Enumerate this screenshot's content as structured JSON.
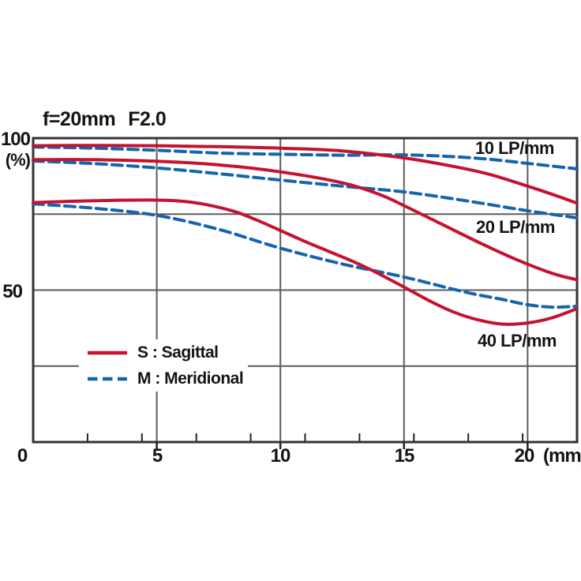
{
  "title": {
    "focal": "f=20mm",
    "aperture": "F2.0"
  },
  "colors": {
    "sagittal": "#c5132f",
    "meridional": "#1565ad",
    "grid": "#5c5c5c",
    "border": "#333333",
    "tick": "#222222",
    "text": "#141414",
    "background": "#ffffff"
  },
  "y_axis": {
    "label_100": "100",
    "unit": "(%)",
    "label_50": "50"
  },
  "x_axis": {
    "tick_labels": [
      "0",
      "5",
      "10",
      "15",
      "20"
    ],
    "unit": "(mm)"
  },
  "curve_labels": [
    "10 LP/mm",
    "20 LP/mm",
    "40 LP/mm"
  ],
  "legend": {
    "sagittal_label": "S : Sagittal",
    "meridional_label": "M : Meridional"
  },
  "chart_data": {
    "type": "line",
    "title": "f=20mm F2.0",
    "xlabel": "(mm)",
    "ylabel": "(%)",
    "xlim": [
      0,
      22
    ],
    "ylim": [
      0,
      100
    ],
    "x_major_ticks": [
      0,
      5,
      10,
      15,
      20
    ],
    "x_minor_ticks": [
      2.2,
      4.4,
      6.6,
      8.8,
      11,
      13.2,
      15.4,
      17.6,
      19.8
    ],
    "y_gridlines": [
      25,
      50,
      75,
      100
    ],
    "y_labeled_ticks": [
      50,
      100
    ],
    "grid": true,
    "legend_position": "inside-lower-left",
    "annotations": [
      "10 LP/mm",
      "20 LP/mm",
      "40 LP/mm"
    ],
    "series": [
      {
        "name": "10 LP/mm Sagittal",
        "group": "10 LP/mm",
        "orientation": "S",
        "style": "solid",
        "color_key": "sagittal",
        "points": [
          [
            0,
            97.5
          ],
          [
            2.5,
            97.6
          ],
          [
            5,
            97.5
          ],
          [
            7.5,
            97.2
          ],
          [
            10,
            96.7
          ],
          [
            12.5,
            95.8
          ],
          [
            15,
            93.5
          ],
          [
            17,
            90.7
          ],
          [
            18.5,
            88.0
          ],
          [
            20,
            84.2
          ],
          [
            21,
            81.5
          ],
          [
            22,
            78.6
          ]
        ]
      },
      {
        "name": "10 LP/mm Meridional",
        "group": "10 LP/mm",
        "orientation": "M",
        "style": "dashed",
        "color_key": "meridional",
        "points": [
          [
            0,
            97.1
          ],
          [
            2.5,
            96.7
          ],
          [
            5,
            96.0
          ],
          [
            7.5,
            95.1
          ],
          [
            10,
            94.7
          ],
          [
            12.5,
            94.4
          ],
          [
            15,
            94.5
          ],
          [
            17,
            93.9
          ],
          [
            18.5,
            93.0
          ],
          [
            20,
            91.7
          ],
          [
            21,
            90.8
          ],
          [
            22,
            89.9
          ]
        ]
      },
      {
        "name": "20 LP/mm Sagittal",
        "group": "20 LP/mm",
        "orientation": "S",
        "style": "solid",
        "color_key": "sagittal",
        "points": [
          [
            0,
            92.9
          ],
          [
            2.5,
            92.9
          ],
          [
            5,
            92.4
          ],
          [
            7.5,
            91.2
          ],
          [
            10,
            88.9
          ],
          [
            12.5,
            85.3
          ],
          [
            14,
            81.5
          ],
          [
            15,
            77.8
          ],
          [
            16.5,
            71.8
          ],
          [
            18,
            65.8
          ],
          [
            19.5,
            60.2
          ],
          [
            21,
            55.5
          ],
          [
            22,
            53.4
          ]
        ]
      },
      {
        "name": "20 LP/mm Meridional",
        "group": "20 LP/mm",
        "orientation": "M",
        "style": "dashed",
        "color_key": "meridional",
        "points": [
          [
            0,
            92.5
          ],
          [
            2.5,
            91.6
          ],
          [
            5,
            90.2
          ],
          [
            7.5,
            88.3
          ],
          [
            10,
            86.2
          ],
          [
            12.5,
            84.2
          ],
          [
            15,
            82.3
          ],
          [
            17.5,
            79.4
          ],
          [
            20,
            76.1
          ],
          [
            22,
            73.8
          ]
        ]
      },
      {
        "name": "40 LP/mm Sagittal",
        "group": "40 LP/mm",
        "orientation": "S",
        "style": "solid",
        "color_key": "sagittal",
        "points": [
          [
            0,
            78.8
          ],
          [
            2.5,
            79.4
          ],
          [
            5,
            79.6
          ],
          [
            6.5,
            78.8
          ],
          [
            8,
            76.2
          ],
          [
            9,
            73.2
          ],
          [
            10,
            69.6
          ],
          [
            11,
            66.0
          ],
          [
            12,
            62.6
          ],
          [
            13,
            59.2
          ],
          [
            14,
            55.3
          ],
          [
            15,
            51.0
          ],
          [
            16,
            46.6
          ],
          [
            17,
            42.8
          ],
          [
            18,
            40.2
          ],
          [
            19,
            38.8
          ],
          [
            20,
            39.2
          ],
          [
            21,
            40.9
          ],
          [
            22,
            43.9
          ]
        ]
      },
      {
        "name": "40 LP/mm Meridional",
        "group": "40 LP/mm",
        "orientation": "M",
        "style": "dashed",
        "color_key": "meridional",
        "points": [
          [
            0,
            78.4
          ],
          [
            2.5,
            76.9
          ],
          [
            5,
            74.6
          ],
          [
            7.5,
            70.0
          ],
          [
            10,
            63.8
          ],
          [
            12.5,
            58.6
          ],
          [
            15,
            54.3
          ],
          [
            17.5,
            49.3
          ],
          [
            19,
            46.9
          ],
          [
            20,
            45.2
          ],
          [
            21,
            44.4
          ],
          [
            22,
            44.7
          ]
        ]
      }
    ]
  }
}
